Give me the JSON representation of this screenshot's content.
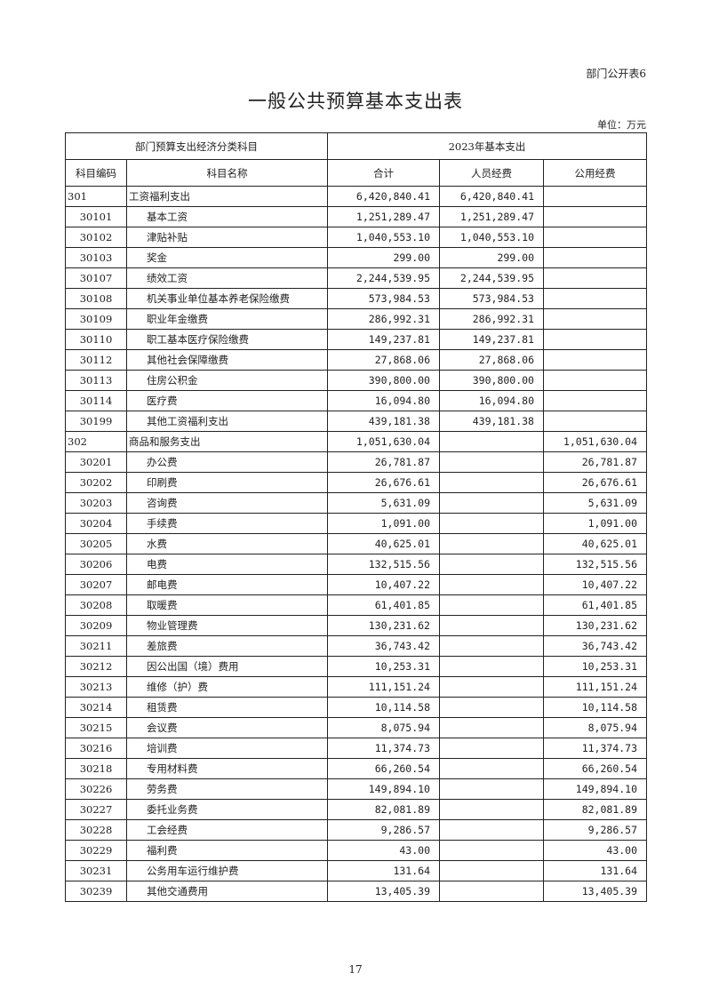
{
  "form_number": "部门公开表6",
  "title": "一般公共预算基本支出表",
  "unit": "单位：万元",
  "header": {
    "group_left": "部门预算支出经济分类科目",
    "group_right": "2023年基本支出",
    "code": "科目编码",
    "name": "科目名称",
    "total": "合计",
    "personnel": "人员经费",
    "public": "公用经费"
  },
  "rows": [
    {
      "code": "301",
      "name": "工资福利支出",
      "total": "6,420,840.41",
      "personnel": "6,420,840.41",
      "public": "",
      "level": 1
    },
    {
      "code": "30101",
      "name": "基本工资",
      "total": "1,251,289.47",
      "personnel": "1,251,289.47",
      "public": "",
      "level": 2
    },
    {
      "code": "30102",
      "name": "津贴补贴",
      "total": "1,040,553.10",
      "personnel": "1,040,553.10",
      "public": "",
      "level": 2
    },
    {
      "code": "30103",
      "name": "奖金",
      "total": "299.00",
      "personnel": "299.00",
      "public": "",
      "level": 2
    },
    {
      "code": "30107",
      "name": "绩效工资",
      "total": "2,244,539.95",
      "personnel": "2,244,539.95",
      "public": "",
      "level": 2
    },
    {
      "code": "30108",
      "name": "机关事业单位基本养老保险缴费",
      "total": "573,984.53",
      "personnel": "573,984.53",
      "public": "",
      "level": 2
    },
    {
      "code": "30109",
      "name": "职业年金缴费",
      "total": "286,992.31",
      "personnel": "286,992.31",
      "public": "",
      "level": 2
    },
    {
      "code": "30110",
      "name": "职工基本医疗保险缴费",
      "total": "149,237.81",
      "personnel": "149,237.81",
      "public": "",
      "level": 2
    },
    {
      "code": "30112",
      "name": "其他社会保障缴费",
      "total": "27,868.06",
      "personnel": "27,868.06",
      "public": "",
      "level": 2
    },
    {
      "code": "30113",
      "name": "住房公积金",
      "total": "390,800.00",
      "personnel": "390,800.00",
      "public": "",
      "level": 2
    },
    {
      "code": "30114",
      "name": "医疗费",
      "total": "16,094.80",
      "personnel": "16,094.80",
      "public": "",
      "level": 2
    },
    {
      "code": "30199",
      "name": "其他工资福利支出",
      "total": "439,181.38",
      "personnel": "439,181.38",
      "public": "",
      "level": 2
    },
    {
      "code": "302",
      "name": "商品和服务支出",
      "total": "1,051,630.04",
      "personnel": "",
      "public": "1,051,630.04",
      "level": 1
    },
    {
      "code": "30201",
      "name": "办公费",
      "total": "26,781.87",
      "personnel": "",
      "public": "26,781.87",
      "level": 2
    },
    {
      "code": "30202",
      "name": "印刷费",
      "total": "26,676.61",
      "personnel": "",
      "public": "26,676.61",
      "level": 2
    },
    {
      "code": "30203",
      "name": "咨询费",
      "total": "5,631.09",
      "personnel": "",
      "public": "5,631.09",
      "level": 2
    },
    {
      "code": "30204",
      "name": "手续费",
      "total": "1,091.00",
      "personnel": "",
      "public": "1,091.00",
      "level": 2
    },
    {
      "code": "30205",
      "name": "水费",
      "total": "40,625.01",
      "personnel": "",
      "public": "40,625.01",
      "level": 2
    },
    {
      "code": "30206",
      "name": "电费",
      "total": "132,515.56",
      "personnel": "",
      "public": "132,515.56",
      "level": 2
    },
    {
      "code": "30207",
      "name": "邮电费",
      "total": "10,407.22",
      "personnel": "",
      "public": "10,407.22",
      "level": 2
    },
    {
      "code": "30208",
      "name": "取暖费",
      "total": "61,401.85",
      "personnel": "",
      "public": "61,401.85",
      "level": 2
    },
    {
      "code": "30209",
      "name": "物业管理费",
      "total": "130,231.62",
      "personnel": "",
      "public": "130,231.62",
      "level": 2
    },
    {
      "code": "30211",
      "name": "差旅费",
      "total": "36,743.42",
      "personnel": "",
      "public": "36,743.42",
      "level": 2
    },
    {
      "code": "30212",
      "name": "因公出国（境）费用",
      "total": "10,253.31",
      "personnel": "",
      "public": "10,253.31",
      "level": 2
    },
    {
      "code": "30213",
      "name": "维修（护）费",
      "total": "111,151.24",
      "personnel": "",
      "public": "111,151.24",
      "level": 2
    },
    {
      "code": "30214",
      "name": "租赁费",
      "total": "10,114.58",
      "personnel": "",
      "public": "10,114.58",
      "level": 2
    },
    {
      "code": "30215",
      "name": "会议费",
      "total": "8,075.94",
      "personnel": "",
      "public": "8,075.94",
      "level": 2
    },
    {
      "code": "30216",
      "name": "培训费",
      "total": "11,374.73",
      "personnel": "",
      "public": "11,374.73",
      "level": 2
    },
    {
      "code": "30218",
      "name": "专用材料费",
      "total": "66,260.54",
      "personnel": "",
      "public": "66,260.54",
      "level": 2
    },
    {
      "code": "30226",
      "name": "劳务费",
      "total": "149,894.10",
      "personnel": "",
      "public": "149,894.10",
      "level": 2
    },
    {
      "code": "30227",
      "name": "委托业务费",
      "total": "82,081.89",
      "personnel": "",
      "public": "82,081.89",
      "level": 2
    },
    {
      "code": "30228",
      "name": "工会经费",
      "total": "9,286.57",
      "personnel": "",
      "public": "9,286.57",
      "level": 2
    },
    {
      "code": "30229",
      "name": "福利费",
      "total": "43.00",
      "personnel": "",
      "public": "43.00",
      "level": 2
    },
    {
      "code": "30231",
      "name": "公务用车运行维护费",
      "total": "131.64",
      "personnel": "",
      "public": "131.64",
      "level": 2
    },
    {
      "code": "30239",
      "name": "其他交通费用",
      "total": "13,405.39",
      "personnel": "",
      "public": "13,405.39",
      "level": 2
    }
  ],
  "page_number": "17"
}
